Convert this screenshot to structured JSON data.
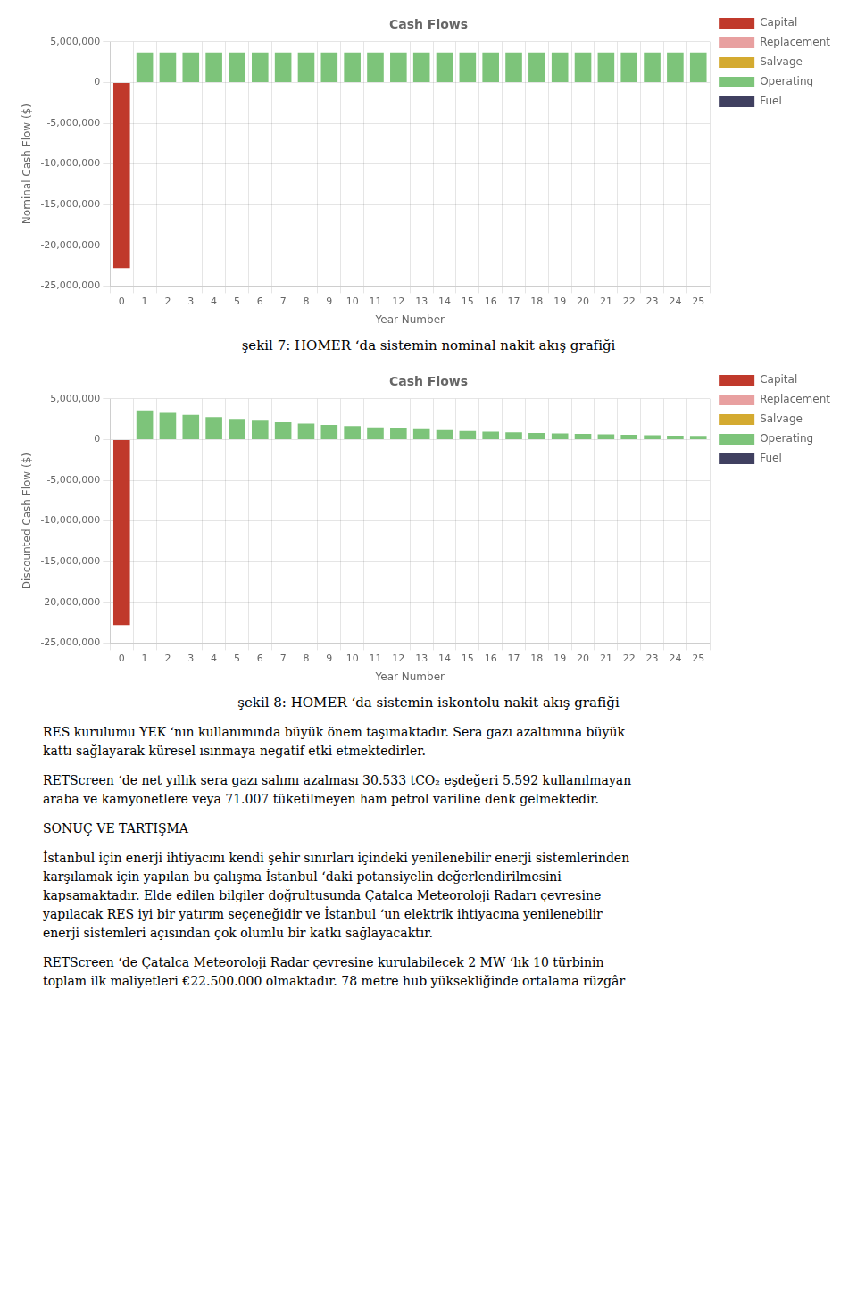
{
  "chart_data": [
    {
      "type": "bar",
      "title": "Cash Flows",
      "xlabel": "Year Number",
      "ylabel": "Nominal Cash Flow ($)",
      "categories": [
        "0",
        "1",
        "2",
        "3",
        "4",
        "5",
        "6",
        "7",
        "8",
        "9",
        "10",
        "11",
        "12",
        "13",
        "14",
        "15",
        "16",
        "17",
        "18",
        "19",
        "20",
        "21",
        "22",
        "23",
        "24",
        "25"
      ],
      "series": [
        {
          "name": "Capital",
          "color": "#c0392b",
          "values": [
            -22800000,
            0,
            0,
            0,
            0,
            0,
            0,
            0,
            0,
            0,
            0,
            0,
            0,
            0,
            0,
            0,
            0,
            0,
            0,
            0,
            0,
            0,
            0,
            0,
            0,
            0
          ]
        },
        {
          "name": "Replacement",
          "color": "#e8a0a0",
          "values": [
            null,
            null,
            null,
            null,
            null,
            null,
            null,
            null,
            null,
            null,
            null,
            null,
            null,
            null,
            null,
            null,
            null,
            null,
            null,
            null,
            null,
            null,
            null,
            null,
            null,
            null
          ]
        },
        {
          "name": "Salvage",
          "color": "#d4aa30",
          "values": [
            null,
            null,
            null,
            null,
            null,
            null,
            null,
            null,
            null,
            null,
            null,
            null,
            null,
            null,
            null,
            null,
            null,
            null,
            null,
            null,
            null,
            null,
            null,
            null,
            null,
            null
          ]
        },
        {
          "name": "Operating",
          "color": "#7dc47a",
          "values": [
            0,
            3700000,
            3700000,
            3700000,
            3700000,
            3700000,
            3700000,
            3700000,
            3700000,
            3700000,
            3700000,
            3700000,
            3700000,
            3700000,
            3700000,
            3700000,
            3700000,
            3700000,
            3700000,
            3700000,
            3700000,
            3700000,
            3700000,
            3700000,
            3700000,
            3700000
          ]
        },
        {
          "name": "Fuel",
          "color": "#404060",
          "values": [
            null,
            null,
            null,
            null,
            null,
            null,
            null,
            null,
            null,
            null,
            null,
            null,
            null,
            null,
            null,
            null,
            null,
            null,
            null,
            null,
            null,
            null,
            null,
            null,
            null,
            null
          ]
        }
      ],
      "ylim": [
        -25000000,
        5000000
      ],
      "yticks": [
        {
          "value": -25000000,
          "label": "-25,000,000"
        },
        {
          "value": -20000000,
          "label": "-20,000,000"
        },
        {
          "value": -15000000,
          "label": "-15,000,000"
        },
        {
          "value": -10000000,
          "label": "-10,000,000"
        },
        {
          "value": -5000000,
          "label": "-5,000,000"
        },
        0,
        {
          "value": 5000000,
          "label": "5,000,000"
        }
      ],
      "grid": true,
      "legend": "upper right",
      "stacked": true,
      "annotations": [
        "şekil 7: HOMER ‘da sistemin nominal nakit akış grafiği"
      ]
    },
    {
      "type": "bar",
      "title": "Cash Flows",
      "xlabel": "Year Number",
      "ylabel": "Discounted Cash Flow ($)",
      "categories": [
        "0",
        "1",
        "2",
        "3",
        "4",
        "5",
        "6",
        "7",
        "8",
        "9",
        "10",
        "11",
        "12",
        "13",
        "14",
        "15",
        "16",
        "17",
        "18",
        "19",
        "20",
        "21",
        "22",
        "23",
        "24",
        "25"
      ],
      "series": [
        {
          "name": "Capital",
          "color": "#c0392b",
          "values": [
            -22800000,
            0,
            0,
            0,
            0,
            0,
            0,
            0,
            0,
            0,
            0,
            0,
            0,
            0,
            0,
            0,
            0,
            0,
            0,
            0,
            0,
            0,
            0,
            0,
            0,
            0
          ]
        },
        {
          "name": "Replacement",
          "color": "#e8a0a0",
          "values": [
            null,
            null,
            null,
            null,
            null,
            null,
            null,
            null,
            null,
            null,
            null,
            null,
            null,
            null,
            null,
            null,
            null,
            null,
            null,
            null,
            null,
            null,
            null,
            null,
            null,
            null
          ]
        },
        {
          "name": "Salvage",
          "color": "#d4aa30",
          "values": [
            null,
            null,
            null,
            null,
            null,
            null,
            null,
            null,
            null,
            null,
            null,
            null,
            null,
            null,
            null,
            null,
            null,
            null,
            null,
            null,
            null,
            null,
            null,
            null,
            null,
            null
          ]
        },
        {
          "name": "Operating",
          "color": "#7dc47a",
          "values": [
            0,
            3590000,
            3290000,
            3020000,
            2770000,
            2540000,
            2330000,
            2140000,
            1960000,
            1800000,
            1650000,
            1510000,
            1390000,
            1270000,
            1170000,
            1070000,
            980000,
            900000,
            825000,
            757000,
            694000,
            637000,
            584000,
            536000,
            491000,
            450000
          ]
        },
        {
          "name": "Fuel",
          "color": "#404060",
          "values": [
            null,
            null,
            null,
            null,
            null,
            null,
            null,
            null,
            null,
            null,
            null,
            null,
            null,
            null,
            null,
            null,
            null,
            null,
            null,
            null,
            null,
            null,
            null,
            null,
            null,
            null
          ]
        }
      ],
      "ylim": [
        -25000000,
        5000000
      ],
      "yticks": [
        {
          "value": -25000000,
          "label": "-25,000,000"
        },
        {
          "value": -20000000,
          "label": "-20,000,000"
        },
        {
          "value": -15000000,
          "label": "-15,000,000"
        },
        {
          "value": -10000000,
          "label": "-10,000,000"
        },
        {
          "value": -5000000,
          "label": "-5,000,000"
        },
        0,
        {
          "value": 5000000,
          "label": "5,000,000"
        }
      ],
      "grid": true,
      "legend": "upper right",
      "stacked": true,
      "annotations": [
        "şekil 8: HOMER ‘da sistemin iskontolu nakit akış grafiği",
        "RES kurulumu YEK ‘nın kullanımında büyük önem taşımaktadır. Sera gazı azaltımına büyük\nkattı sağlayarak küresel ısınmaya negatif etki etmektedirler.",
        "RETScreen ‘de net yıllık sera gazı salımı azalması 30.533 tCO₂ eşdeğeri 5.592 kullanılmayan\naraba ve kamyonetlere veya 71.007 tüketilmeyen ham petrol variline denk gelmektedir.",
        "SONUÇ VE TARTIŞMA",
        "İstanbul için enerji ihtiyacını kendi şehir sınırları içindeki yenilenebilir enerji sistemlerinden\nkarşılamak için yapılan bu çalışma İstanbul ‘daki potansiyelin değerlendirilmesini\nkapsamaktadır. Elde edilen bilgiler doğrultusunda Çatalca Meteoroloji Radarı çevresine\nyapılacak RES iyi bir yatırım seçeneğidir ve İstanbul ‘un elektrik ihtiyacına yenilenebilir\nenerji sistemleri açısından çok olumlu bir katkı sağlayacaktır.",
        "RETScreen ‘de Çatalca Meteoroloji Radar çevresine kurulabilecek 2 MW ‘lık 10 türbinin\ntoplam ilk maliyetleri €22.500.000 olmaktadır. 78 metre hub yüksekliğinde ortalama rüzgâr"
      ]
    }
  ]
}
